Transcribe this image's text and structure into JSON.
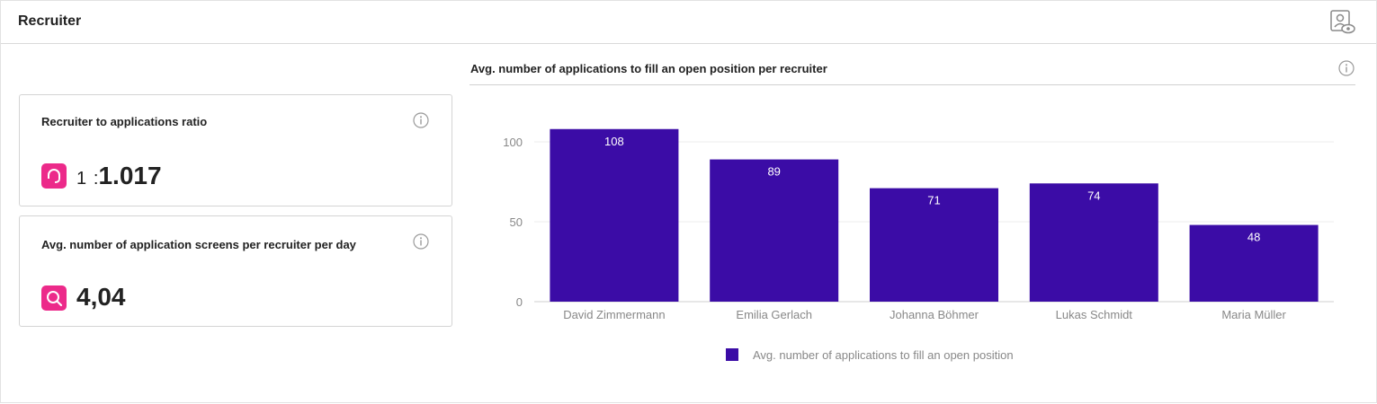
{
  "header": {
    "title": "Recruiter",
    "icon": "user-preview-icon"
  },
  "cards": {
    "ratio": {
      "title": "Recruiter to applications ratio",
      "icon": "headset-icon",
      "prefix": "1",
      "sep": ":",
      "value": "1.017"
    },
    "screens": {
      "title": "Avg. number of application screens per recruiter per day",
      "icon": "search-icon",
      "value": "4,04"
    }
  },
  "chart": {
    "title": "Avg. number of applications to fill an open position per recruiter"
  },
  "colors": {
    "bar": "#3b0ca6",
    "accent": "#ec2a8a"
  },
  "chart_data": {
    "type": "bar",
    "categories": [
      "David Zimmermann",
      "Emilia Gerlach",
      "Johanna Böhmer",
      "Lukas Schmidt",
      "Maria Müller"
    ],
    "series": [
      {
        "name": "Avg. number of applications to fill an open position",
        "values": [
          108,
          89,
          71,
          74,
          48
        ]
      }
    ],
    "yticks": [
      "0",
      "50",
      "100"
    ],
    "ylim": [
      0,
      120
    ],
    "grid": true,
    "legend": "bottom-center"
  }
}
